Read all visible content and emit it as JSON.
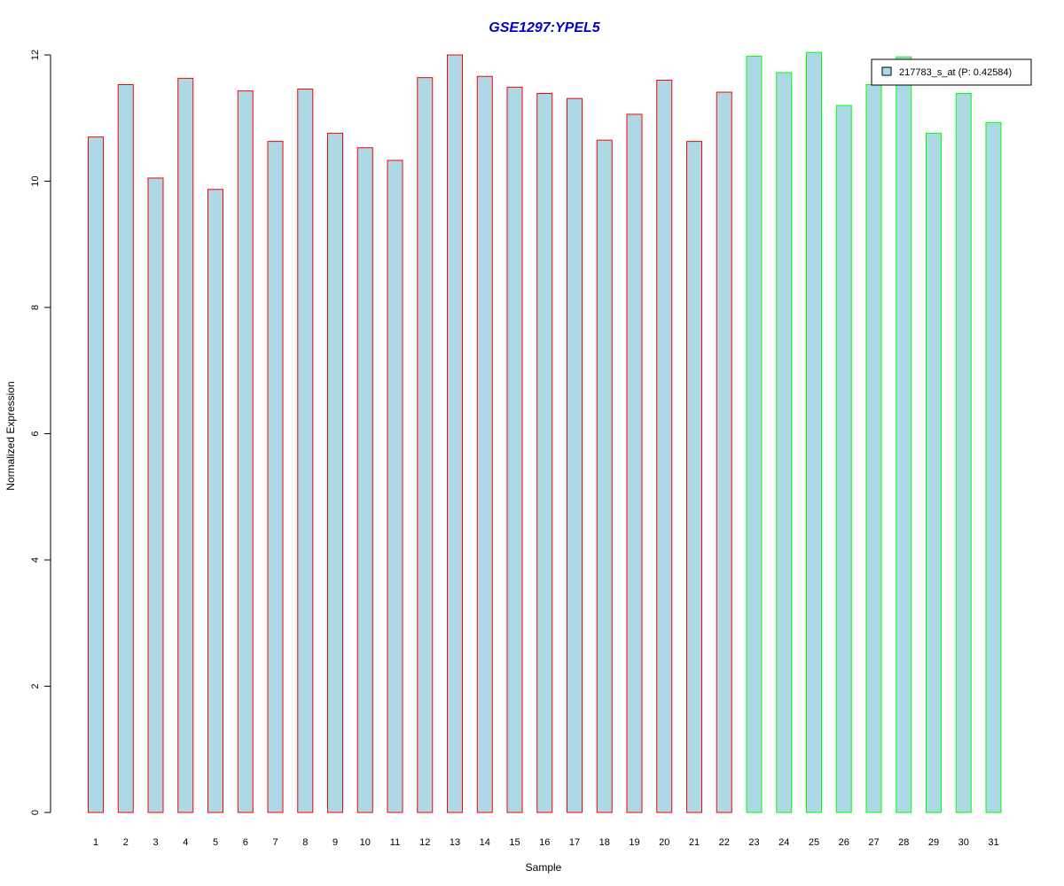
{
  "chart_data": {
    "type": "bar",
    "title": "GSE1297:YPEL5",
    "xlabel": "Sample",
    "ylabel": "Normalized Expression",
    "ylim": [
      0,
      12
    ],
    "yticks": [
      "0",
      "2",
      "4",
      "6",
      "8",
      "10",
      "12"
    ],
    "categories": [
      "1",
      "2",
      "3",
      "4",
      "5",
      "6",
      "7",
      "8",
      "9",
      "10",
      "11",
      "12",
      "13",
      "14",
      "15",
      "16",
      "17",
      "18",
      "19",
      "20",
      "21",
      "22",
      "23",
      "24",
      "25",
      "26",
      "27",
      "28",
      "29",
      "30",
      "31"
    ],
    "series": [
      {
        "name": "217783_s_at (P: 0.42584)",
        "values": [
          10.7,
          11.53,
          10.05,
          11.63,
          9.87,
          11.43,
          10.63,
          11.46,
          10.76,
          10.53,
          10.33,
          11.64,
          12.0,
          11.66,
          11.49,
          11.39,
          11.31,
          10.65,
          11.06,
          11.6,
          10.63,
          11.41,
          11.98,
          11.72,
          12.04,
          11.2,
          11.53,
          11.97,
          10.76,
          11.39,
          10.93
        ]
      }
    ],
    "bar_fill": "#add8e6",
    "group_border_colors": [
      "#ff0000",
      "#ff0000",
      "#ff0000",
      "#ff0000",
      "#ff0000",
      "#ff0000",
      "#ff0000",
      "#ff0000",
      "#ff0000",
      "#ff0000",
      "#ff0000",
      "#ff0000",
      "#ff0000",
      "#ff0000",
      "#ff0000",
      "#ff0000",
      "#ff0000",
      "#ff0000",
      "#ff0000",
      "#ff0000",
      "#ff0000",
      "#ff0000",
      "#00ff00",
      "#00ff00",
      "#00ff00",
      "#00ff00",
      "#00ff00",
      "#00ff00",
      "#00ff00",
      "#00ff00",
      "#00ff00"
    ],
    "title_color": "#0000cc",
    "legend": {
      "position": "top-right",
      "label": "217783_s_at (P: 0.42584)"
    },
    "grid": false
  }
}
